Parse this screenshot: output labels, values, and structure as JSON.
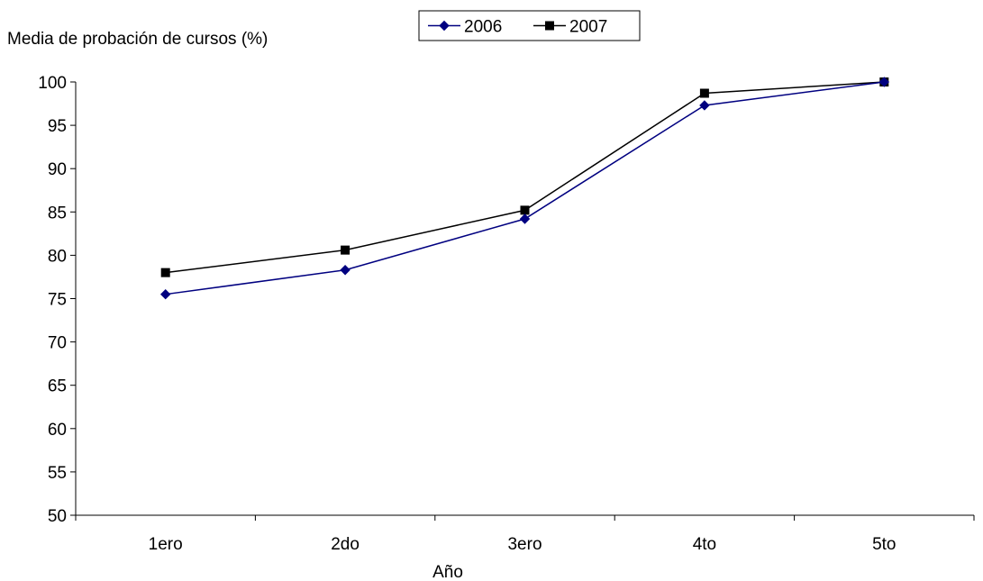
{
  "chart_data": {
    "type": "line",
    "categories": [
      "1ero",
      "2do",
      "3ero",
      "4to",
      "5to"
    ],
    "series": [
      {
        "name": "2006",
        "values": [
          75.5,
          78.3,
          84.2,
          97.3,
          100
        ],
        "color": "#000080",
        "marker": "diamond"
      },
      {
        "name": "2007",
        "values": [
          78.0,
          80.6,
          85.2,
          98.7,
          100
        ],
        "color": "#000000",
        "marker": "square"
      }
    ],
    "ylabel": "Media de probación de cursos (%)",
    "xlabel": "Año",
    "ylim": [
      50,
      100
    ],
    "yticks": [
      50,
      55,
      60,
      65,
      70,
      75,
      80,
      85,
      90,
      95,
      100
    ],
    "grid": false,
    "legend_position": "top-center"
  }
}
